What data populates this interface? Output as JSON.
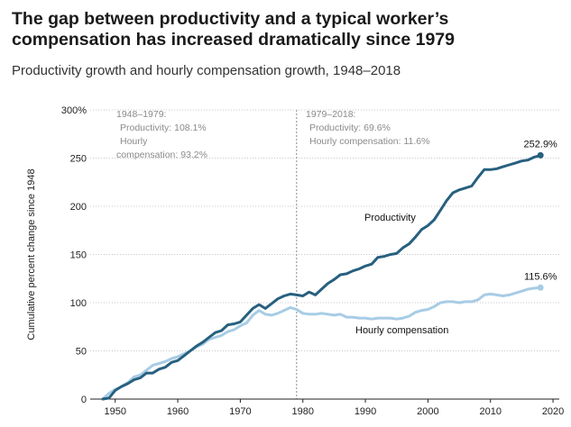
{
  "header": {
    "title": "The gap between productivity and a typical worker’s compensation has increased dramatically since 1979",
    "subtitle": "Productivity growth and hourly compensation growth, 1948–2018"
  },
  "chart_data": {
    "type": "line",
    "ylabel": "Cumulative percent change since 1948",
    "ylim": [
      0,
      300
    ],
    "xlim": [
      1946,
      2021
    ],
    "y_ticks": [
      0,
      50,
      100,
      150,
      200,
      250,
      300
    ],
    "y_tick_labels": [
      "0",
      "50",
      "100",
      "150",
      "200",
      "250",
      "300%"
    ],
    "x_ticks": [
      1950,
      1960,
      1970,
      1980,
      1990,
      2000,
      2010,
      2020
    ],
    "x_tick_labels": [
      "1950",
      "1960",
      "1970",
      "1980",
      "1990",
      "2000",
      "2010",
      "2020"
    ],
    "grid": "horizontal dotted",
    "marker_year": 1979,
    "periods": [
      {
        "lines": [
          "1948–1979:",
          "Productivity: 108.1%",
          "Hourly",
          "compensation: 93.2%"
        ]
      },
      {
        "lines": [
          "1979–2018:",
          "Productivity: 69.6%",
          "Hourly compensation: 11.6%"
        ]
      }
    ],
    "series": [
      {
        "name": "Productivity",
        "color": "#27607f",
        "end_label": "252.9%",
        "x": [
          1948,
          1949,
          1950,
          1951,
          1952,
          1953,
          1954,
          1955,
          1956,
          1957,
          1958,
          1959,
          1960,
          1961,
          1962,
          1963,
          1964,
          1965,
          1966,
          1967,
          1968,
          1969,
          1970,
          1971,
          1972,
          1973,
          1974,
          1975,
          1976,
          1977,
          1978,
          1979,
          1980,
          1981,
          1982,
          1983,
          1984,
          1985,
          1986,
          1987,
          1988,
          1989,
          1990,
          1991,
          1992,
          1993,
          1994,
          1995,
          1996,
          1997,
          1998,
          1999,
          2000,
          2001,
          2002,
          2003,
          2004,
          2005,
          2006,
          2007,
          2008,
          2009,
          2010,
          2011,
          2012,
          2013,
          2014,
          2015,
          2016,
          2017,
          2018
        ],
        "values": [
          0,
          1,
          9,
          13,
          16,
          20,
          22,
          27,
          27,
          31,
          33,
          38,
          40,
          45,
          50,
          55,
          59,
          64,
          69,
          71,
          77,
          78,
          80,
          87,
          94,
          98,
          94,
          99,
          104,
          107,
          109,
          108,
          107,
          111,
          108,
          114,
          120,
          124,
          129,
          130,
          133,
          135,
          138,
          140,
          147,
          148,
          150,
          151,
          157,
          161,
          168,
          176,
          180,
          186,
          196,
          206,
          214,
          217,
          219,
          221,
          230,
          238,
          238,
          239,
          241,
          243,
          245,
          247,
          248,
          251,
          252.9
        ]
      },
      {
        "name": "Hourly compensation",
        "color": "#a7cce5",
        "end_label": "115.6%",
        "x": [
          1948,
          1949,
          1950,
          1951,
          1952,
          1953,
          1954,
          1955,
          1956,
          1957,
          1958,
          1959,
          1960,
          1961,
          1962,
          1963,
          1964,
          1965,
          1966,
          1967,
          1968,
          1969,
          1970,
          1971,
          1972,
          1973,
          1974,
          1975,
          1976,
          1977,
          1978,
          1979,
          1980,
          1981,
          1982,
          1983,
          1984,
          1985,
          1986,
          1987,
          1988,
          1989,
          1990,
          1991,
          1992,
          1993,
          1994,
          1995,
          1996,
          1997,
          1998,
          1999,
          2000,
          2001,
          2002,
          2003,
          2004,
          2005,
          2006,
          2007,
          2008,
          2009,
          2010,
          2011,
          2012,
          2013,
          2014,
          2015,
          2016,
          2017,
          2018
        ],
        "values": [
          0,
          6,
          10,
          13,
          17,
          23,
          25,
          30,
          35,
          37,
          39,
          42,
          44,
          47,
          50,
          54,
          57,
          62,
          64,
          66,
          70,
          72,
          76,
          79,
          87,
          92,
          88,
          87,
          89,
          92,
          95,
          93,
          89,
          88,
          88,
          89,
          88,
          87,
          88,
          85,
          85,
          84,
          84,
          83,
          84,
          84,
          84,
          83,
          84,
          86,
          90,
          92,
          93,
          96,
          100,
          101,
          101,
          100,
          101,
          101,
          103,
          108,
          109,
          108,
          107,
          108,
          110,
          112,
          114,
          115,
          115.6
        ]
      }
    ]
  }
}
